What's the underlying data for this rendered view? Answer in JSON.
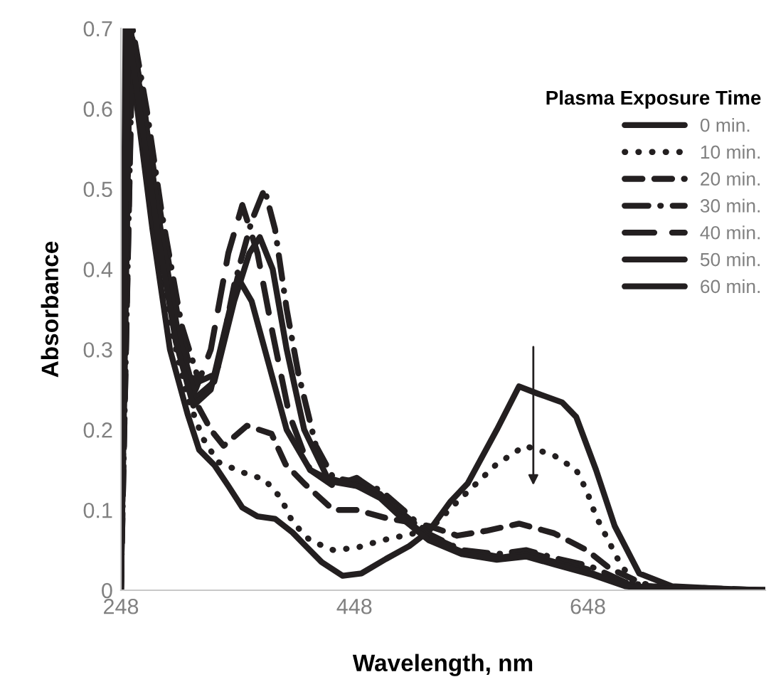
{
  "chart_data": {
    "type": "line",
    "xlabel": "Wavelength, nm",
    "ylabel": "Absorbance",
    "legend_title": "Plasma Exposure Time",
    "legend": "top right",
    "grid": false,
    "marker": "none",
    "xlim": [
      248,
      800
    ],
    "xticks": [
      248,
      448,
      648
    ],
    "ylim": [
      0,
      0.7
    ],
    "yticks": [
      0,
      0.1,
      0.2,
      0.3,
      0.4,
      0.5,
      0.6,
      0.7
    ],
    "series": [
      {
        "name": "0 min.",
        "color": "#231f20",
        "line_style": "solid",
        "x": [
          248,
          252,
          262,
          275,
          290,
          305,
          315,
          328,
          340,
          352,
          365,
          380,
          395,
          405,
          420,
          438,
          454,
          475,
          495,
          512,
          530,
          545,
          570,
          589,
          605,
          626,
          638,
          655,
          671,
          692,
          720,
          760,
          800
        ],
        "values": [
          0,
          0.7,
          0.6,
          0.45,
          0.3,
          0.22,
          0.175,
          0.156,
          0.13,
          0.103,
          0.092,
          0.089,
          0.072,
          0.057,
          0.035,
          0.018,
          0.021,
          0.039,
          0.055,
          0.074,
          0.11,
          0.133,
          0.2,
          0.254,
          0.245,
          0.234,
          0.216,
          0.15,
          0.08,
          0.021,
          0.005,
          0.002,
          0
        ]
      },
      {
        "name": "10 min.",
        "color": "#231f20",
        "line_style": "dotted",
        "x": [
          248,
          254,
          265,
          278,
          292,
          305,
          318,
          331,
          352,
          371,
          385,
          395,
          410,
          430,
          450,
          471,
          490,
          512,
          536,
          569,
          594,
          619,
          638,
          647,
          655,
          675,
          687,
          720,
          800
        ],
        "values": [
          0,
          0.7,
          0.6,
          0.45,
          0.32,
          0.24,
          0.19,
          0.16,
          0.147,
          0.138,
          0.115,
          0.085,
          0.062,
          0.05,
          0.053,
          0.062,
          0.068,
          0.075,
          0.11,
          0.156,
          0.18,
          0.168,
          0.15,
          0.124,
          0.092,
          0.035,
          0.01,
          0.003,
          0
        ]
      },
      {
        "name": "20 min.",
        "color": "#231f20",
        "line_style": "dashed",
        "x": [
          248,
          256,
          268,
          280,
          295,
          310,
          325,
          336,
          356,
          377,
          389,
          405,
          430,
          450,
          475,
          495,
          512,
          536,
          561,
          589,
          619,
          647,
          667,
          700,
          800
        ],
        "values": [
          0,
          0.7,
          0.6,
          0.46,
          0.33,
          0.24,
          0.2,
          0.18,
          0.205,
          0.195,
          0.157,
          0.133,
          0.1,
          0.1,
          0.09,
          0.085,
          0.08,
          0.068,
          0.074,
          0.083,
          0.071,
          0.05,
          0.027,
          0.005,
          0
        ]
      },
      {
        "name": "30 min.",
        "color": "#231f20",
        "line_style": "dashdot",
        "x": [
          248,
          258,
          270,
          283,
          300,
          315,
          330,
          345,
          360,
          371,
          380,
          390,
          400,
          415,
          430,
          450,
          470,
          490,
          512,
          540,
          570,
          595,
          620,
          650,
          680,
          710,
          800
        ],
        "values": [
          0,
          0.7,
          0.6,
          0.47,
          0.33,
          0.26,
          0.27,
          0.38,
          0.46,
          0.5,
          0.45,
          0.35,
          0.27,
          0.18,
          0.14,
          0.135,
          0.125,
          0.1,
          0.07,
          0.05,
          0.045,
          0.05,
          0.04,
          0.03,
          0.01,
          0.003,
          0
        ]
      },
      {
        "name": "40 min.",
        "color": "#231f20",
        "line_style": "longdash",
        "x": [
          248,
          258,
          270,
          283,
          298,
          312,
          325,
          340,
          352,
          365,
          378,
          392,
          410,
          430,
          450,
          470,
          490,
          512,
          540,
          570,
          595,
          620,
          650,
          680,
          710,
          800
        ],
        "values": [
          0,
          0.69,
          0.58,
          0.46,
          0.33,
          0.25,
          0.3,
          0.42,
          0.48,
          0.42,
          0.32,
          0.22,
          0.15,
          0.13,
          0.14,
          0.12,
          0.095,
          0.068,
          0.05,
          0.042,
          0.048,
          0.038,
          0.025,
          0.008,
          0.002,
          0
        ]
      },
      {
        "name": "50 min.",
        "color": "#231f20",
        "line_style": "solid",
        "x": [
          248,
          256,
          268,
          282,
          297,
          312,
          328,
          345,
          358,
          367,
          378,
          390,
          405,
          425,
          450,
          470,
          490,
          512,
          540,
          570,
          595,
          620,
          650,
          680,
          710,
          800
        ],
        "values": [
          0,
          0.7,
          0.59,
          0.45,
          0.32,
          0.24,
          0.26,
          0.36,
          0.42,
          0.44,
          0.4,
          0.3,
          0.2,
          0.14,
          0.13,
          0.12,
          0.09,
          0.065,
          0.048,
          0.04,
          0.045,
          0.035,
          0.022,
          0.006,
          0.002,
          0
        ]
      },
      {
        "name": "60 min.",
        "color": "#231f20",
        "line_style": "solid",
        "x": [
          248,
          254,
          266,
          280,
          295,
          310,
          325,
          338,
          348,
          360,
          375,
          390,
          410,
          430,
          450,
          470,
          490,
          512,
          540,
          570,
          595,
          620,
          650,
          680,
          710,
          800
        ],
        "values": [
          0,
          0.7,
          0.58,
          0.44,
          0.31,
          0.23,
          0.25,
          0.33,
          0.39,
          0.36,
          0.28,
          0.2,
          0.15,
          0.135,
          0.13,
          0.115,
          0.088,
          0.062,
          0.045,
          0.038,
          0.042,
          0.032,
          0.02,
          0.005,
          0.001,
          0
        ]
      }
    ]
  }
}
